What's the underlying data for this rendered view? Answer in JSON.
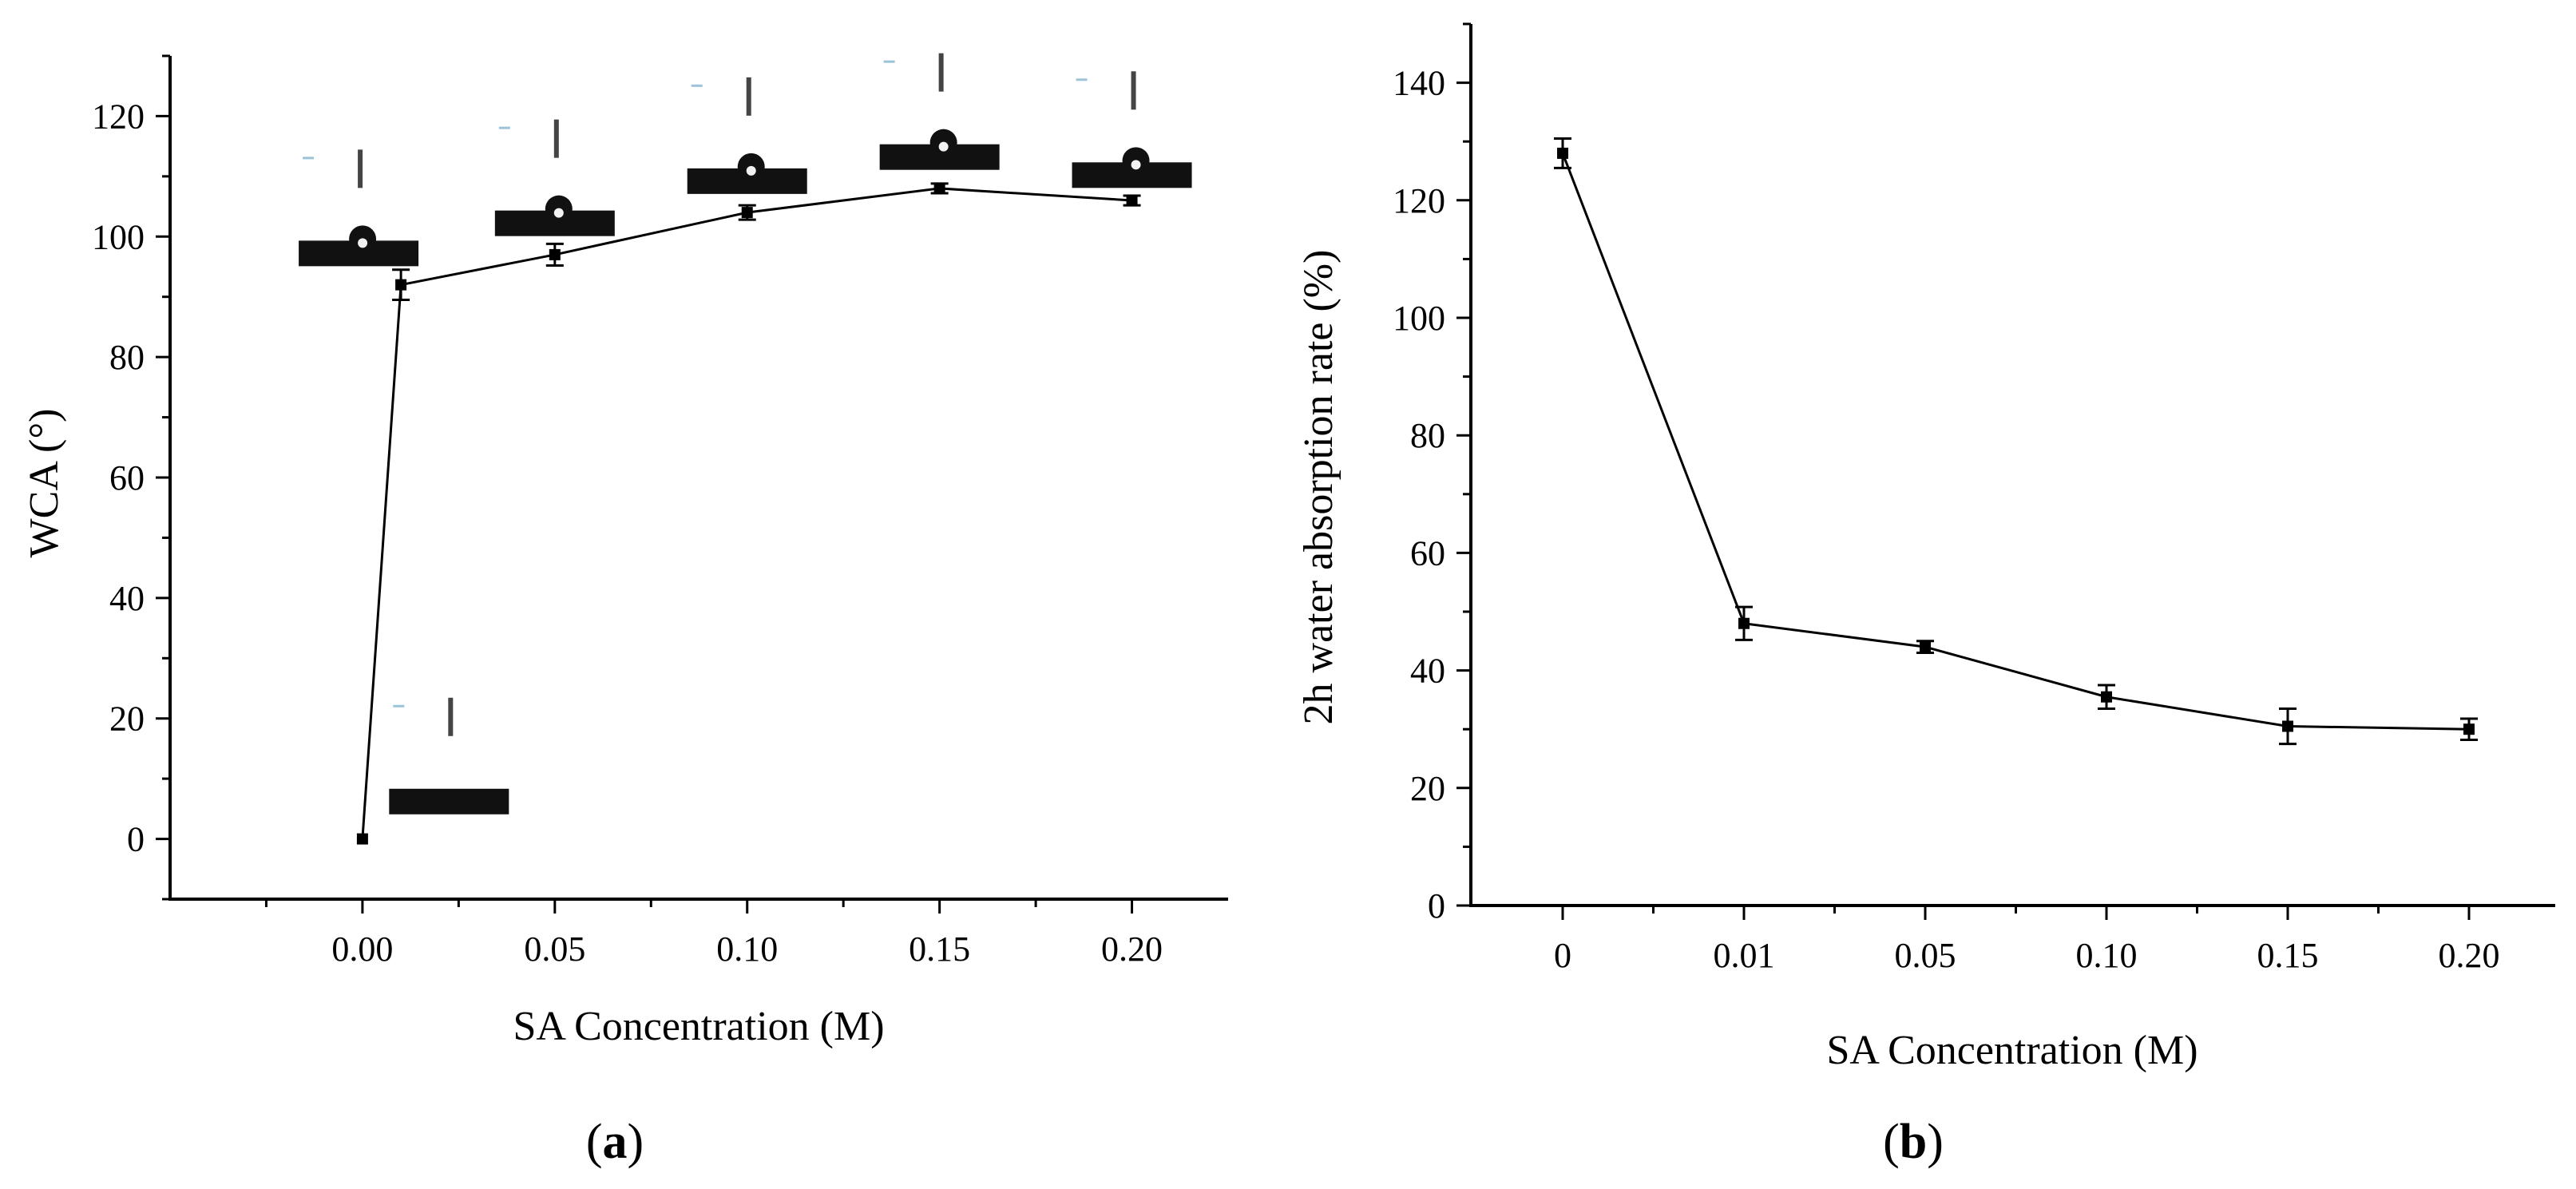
{
  "chart_data": [
    {
      "panel": "a",
      "panel_label": "a",
      "type": "line",
      "xlabel": "SA Concentration (M)",
      "ylabel": "WCA (°)",
      "xlim": [
        -0.05,
        0.225
      ],
      "ylim": [
        -10,
        130
      ],
      "xticks": [
        0.0,
        0.05,
        0.1,
        0.15,
        0.2
      ],
      "xtick_labels": [
        "0.00",
        "0.05",
        "0.10",
        "0.15",
        "0.20"
      ],
      "yticks": [
        0,
        20,
        40,
        60,
        80,
        100,
        120
      ],
      "ytick_labels": [
        "0",
        "20",
        "40",
        "60",
        "80",
        "100",
        "120"
      ],
      "series": [
        {
          "name": "WCA",
          "x": [
            0.0,
            0.01,
            0.05,
            0.1,
            0.15,
            0.2
          ],
          "y": [
            0,
            92,
            97,
            104,
            108,
            106
          ],
          "err": [
            0,
            2.5,
            1.8,
            1.2,
            0.8,
            0.8
          ]
        }
      ],
      "droplet_insets": [
        {
          "x": 0.0,
          "y": 7,
          "shape": "flat"
        },
        {
          "x": 0.0,
          "y": 98,
          "shape": "bead"
        },
        {
          "x": 0.05,
          "y": 103,
          "shape": "bead"
        },
        {
          "x": 0.1,
          "y": 110,
          "shape": "bead"
        },
        {
          "x": 0.15,
          "y": 114,
          "shape": "bead"
        },
        {
          "x": 0.2,
          "y": 111,
          "shape": "bead"
        }
      ],
      "grid": false
    },
    {
      "panel": "b",
      "panel_label": "b",
      "type": "line",
      "xlabel": "SA Concentration (M)",
      "ylabel": "2h water absorption rate (%)",
      "categories": [
        "0",
        "0.01",
        "0.05",
        "0.10",
        "0.15",
        "0.20"
      ],
      "ylim": [
        0,
        150
      ],
      "yticks": [
        0,
        20,
        40,
        60,
        80,
        100,
        120,
        140
      ],
      "ytick_labels": [
        "0",
        "20",
        "40",
        "60",
        "80",
        "100",
        "120",
        "140"
      ],
      "series": [
        {
          "name": "Water absorption",
          "values": [
            128,
            48,
            44,
            35.5,
            30.5,
            30
          ],
          "err": [
            2.5,
            2.8,
            1.0,
            2.0,
            3.0,
            1.8
          ]
        }
      ],
      "grid": false
    }
  ]
}
